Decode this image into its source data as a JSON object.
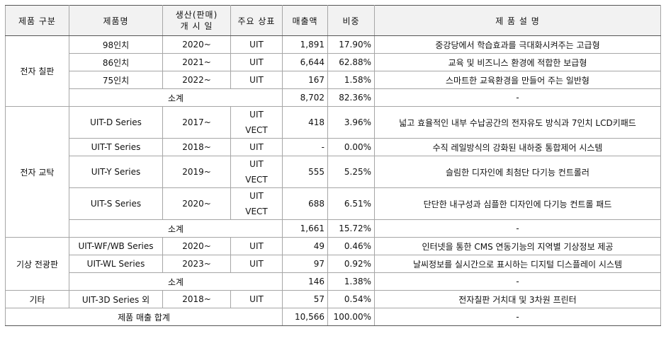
{
  "headers": {
    "category": "제품 구분",
    "product": "제품명",
    "launch": "생산(판매)\n개 시 일",
    "brand": "주요 상표",
    "sales": "매출액",
    "ratio": "비중",
    "desc": "제 품 설 명"
  },
  "groups": [
    {
      "category": "전자 칠판",
      "rows": [
        {
          "product": "98인치",
          "launch": "2020~",
          "brand": "UIT",
          "sales": "1,891",
          "ratio": "17.90%",
          "desc": "중강당에서 학습효과를 극대화시켜주는 고급형"
        },
        {
          "product": "86인치",
          "launch": "2021~",
          "brand": "UIT",
          "sales": "6,644",
          "ratio": "62.88%",
          "desc": "교육 및 비즈니스 환경에 적합한 보급형"
        },
        {
          "product": "75인치",
          "launch": "2022~",
          "brand": "UIT",
          "sales": "167",
          "ratio": "1.58%",
          "desc": "스마트한 교육환경을 만들어 주는 일반형"
        }
      ],
      "subtotal": {
        "label": "소계",
        "sales": "8,702",
        "ratio": "82.36%",
        "desc": "-"
      }
    },
    {
      "category": "전자 교탁",
      "rows": [
        {
          "product": "UIT-D Series",
          "launch": "2017~",
          "brand": "UIT\nVECT",
          "sales": "418",
          "ratio": "3.96%",
          "desc": "넓고 효율적인 내부 수납공간의 전자유도 방식과 7인치 LCD키패드"
        },
        {
          "product": "UIT-T Series",
          "launch": "2018~",
          "brand": "UIT",
          "sales": "-",
          "ratio": "0.00%",
          "desc": "수직 레일방식의 강화된 내하중 통합제어 시스템"
        },
        {
          "product": "UIT-Y Series",
          "launch": "2019~",
          "brand": "UIT\nVECT",
          "sales": "555",
          "ratio": "5.25%",
          "desc": "슬림한 디자인에 최첨단 다기능 컨트롤러"
        },
        {
          "product": "UIT-S Series",
          "launch": "2020~",
          "brand": "UIT\nVECT",
          "sales": "688",
          "ratio": "6.51%",
          "desc": "단단한 내구성과 심플한 디자인에 다기능 컨트롤 패드"
        }
      ],
      "subtotal": {
        "label": "소계",
        "sales": "1,661",
        "ratio": "15.72%",
        "desc": "-"
      }
    },
    {
      "category": "기상 전광판",
      "rows": [
        {
          "product": "UIT-WF/WB Series",
          "launch": "2020~",
          "brand": "UIT",
          "sales": "49",
          "ratio": "0.46%",
          "desc": "인터넷을 통한 CMS 연동기능의 지역별 기상정보 제공"
        },
        {
          "product": "UIT-WL Series",
          "launch": "2023~",
          "brand": "UIT",
          "sales": "97",
          "ratio": "0.92%",
          "desc": "날씨정보를 실시간으로 표시하는 디지털 디스플레이 시스템"
        }
      ],
      "subtotal": {
        "label": "소계",
        "sales": "146",
        "ratio": "1.38%",
        "desc": "-"
      }
    },
    {
      "category": "기타",
      "rows": [
        {
          "product": "UIT-3D Series 외",
          "launch": "2018~",
          "brand": "UIT",
          "sales": "57",
          "ratio": "0.54%",
          "desc": "전자칠판 거치대 및 3차원 프린터"
        }
      ],
      "subtotal": null
    }
  ],
  "total": {
    "label": "제품 매출 합계",
    "sales": "10,566",
    "ratio": "100.00%",
    "desc": "-"
  }
}
